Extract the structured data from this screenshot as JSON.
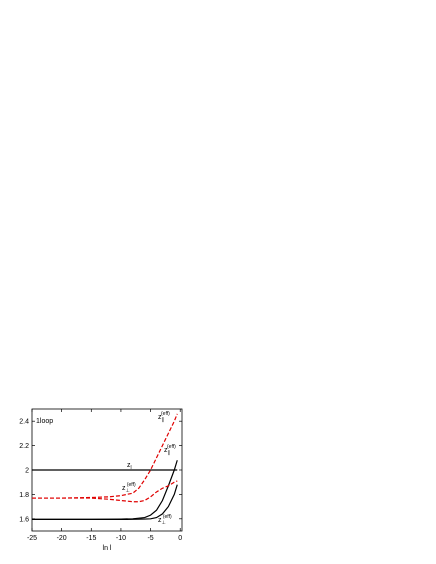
{
  "chart_data": {
    "type": "line",
    "text_label": "1loop",
    "x_label": "ln l",
    "x": [
      -25,
      -20,
      -15,
      -12,
      -10,
      -8,
      -7,
      -6,
      -5,
      -4,
      -3,
      -2,
      -1,
      -0.5
    ],
    "series": [
      {
        "color": "#000000",
        "dash": false,
        "values": [
          2.0,
          2.0,
          2.0,
          2.0,
          2.0,
          2.0,
          2.0,
          2.0,
          2.0,
          2.0,
          2.0,
          2.0,
          2.0,
          2.0
        ]
      },
      {
        "color": "#000000",
        "dash": false,
        "values": [
          1.595,
          1.595,
          1.595,
          1.597,
          1.598,
          1.6,
          1.605,
          1.61,
          1.63,
          1.67,
          1.75,
          1.87,
          2.0,
          2.08
        ]
      },
      {
        "color": "#000000",
        "dash": false,
        "values": [
          1.595,
          1.595,
          1.595,
          1.595,
          1.595,
          1.596,
          1.597,
          1.598,
          1.6,
          1.61,
          1.64,
          1.7,
          1.8,
          1.88
        ]
      },
      {
        "color": "#e00000",
        "dash": true,
        "values": [
          1.77,
          1.77,
          1.775,
          1.78,
          1.79,
          1.81,
          1.85,
          1.92,
          2.0,
          2.1,
          2.2,
          2.3,
          2.4,
          2.46
        ]
      },
      {
        "color": "#e00000",
        "dash": true,
        "values": [
          1.77,
          1.77,
          1.77,
          1.76,
          1.75,
          1.74,
          1.74,
          1.75,
          1.78,
          1.82,
          1.85,
          1.87,
          1.9,
          1.91
        ]
      }
    ],
    "annotations": [
      {
        "base": "z",
        "sub": "∥",
        "sup": "(eff)"
      },
      {
        "base": "z",
        "sub": "∥",
        "sup": "(eff)"
      },
      {
        "base": "z",
        "sub": "⊥",
        "sup": "(eff)"
      },
      {
        "base": "z",
        "sub": "⊥",
        "sup": "(eff)"
      },
      {
        "base": "z",
        "sub": "l"
      }
    ],
    "xlim": [
      -25,
      0.3
    ],
    "ylim": [
      1.5,
      2.5
    ],
    "xticks": [
      -25,
      -20,
      -15,
      -10,
      -5,
      0
    ],
    "yticks": [
      1.6,
      1.8,
      2.0,
      2.2,
      2.4
    ]
  }
}
